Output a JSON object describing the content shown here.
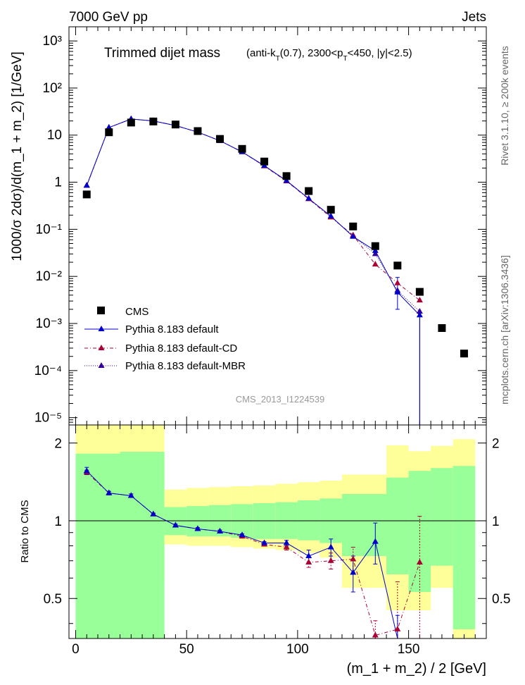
{
  "header": {
    "left": "7000 GeV pp",
    "right": "Jets"
  },
  "side_labels": {
    "rivet": "Rivet 3.1.10, ≥ 200k events",
    "mcplots": "mcplots.cern.ch [arXiv:1306.3436]"
  },
  "colors": {
    "data": "#000000",
    "default": "#0000cc",
    "default_cd": "#aa0033",
    "default_mbr": "#330099",
    "band_green": "#99ff99",
    "band_yellow": "#ffff99"
  },
  "chart_data": [
    {
      "type": "line",
      "title": "Trimmed dijet mass",
      "title_detail": "(anti-k_T(0.7), 2300<p_T<450, |y|<2.5)",
      "watermark": "CMS_2013_I1224539",
      "ylabel": "1000/σ 2dσ)/d(m_1 + m_2) [1/GeV]",
      "yscale": "log",
      "ylim": [
        7e-06,
        2000
      ],
      "xlim": [
        -3,
        185
      ],
      "ytick_labels": [
        "10⁻⁵",
        "10⁻⁴",
        "10⁻³",
        "10⁻²",
        "10⁻¹",
        "1",
        "10",
        "10²",
        "10³"
      ],
      "legend_position": "lower-left",
      "series": [
        {
          "name": "CMS",
          "style": "markers",
          "x": [
            5,
            15,
            25,
            35,
            45,
            55,
            65,
            75,
            85,
            95,
            105,
            115,
            125,
            135,
            145,
            155,
            165,
            175
          ],
          "values": [
            0.55,
            11.5,
            18.5,
            19.5,
            16.8,
            12.2,
            8.3,
            5.1,
            2.75,
            1.35,
            0.65,
            0.26,
            0.115,
            0.044,
            0.017,
            0.0047,
            0.0008,
            0.00023
          ]
        },
        {
          "name": "Pythia 8.183 default",
          "style": "solid",
          "x": [
            5,
            15,
            25,
            35,
            45,
            55,
            65,
            75,
            85,
            95,
            105,
            115,
            125,
            135,
            145,
            155
          ],
          "values": [
            0.85,
            14.5,
            22.0,
            20.0,
            16.0,
            11.6,
            7.6,
            4.4,
            2.25,
            1.08,
            0.45,
            0.19,
            0.07,
            0.035,
            0.0046,
            0.0015
          ]
        },
        {
          "name": "Pythia 8.183 default-CD",
          "style": "dash-dot",
          "x": [
            5,
            15,
            25,
            35,
            45,
            55,
            65,
            75,
            85,
            95,
            105,
            115,
            125,
            135,
            145,
            155
          ],
          "values": [
            0.85,
            14.5,
            22.0,
            20.0,
            16.0,
            11.6,
            7.6,
            4.4,
            2.2,
            1.05,
            0.44,
            0.18,
            0.075,
            0.018,
            0.0072,
            0.0031
          ]
        },
        {
          "name": "Pythia 8.183 default-MBR",
          "style": "dotted",
          "x": [
            5,
            15,
            25,
            35,
            45,
            55,
            65,
            75,
            85,
            95,
            105,
            115,
            125,
            135,
            145,
            155
          ],
          "values": [
            0.85,
            14.5,
            22.0,
            20.0,
            16.0,
            11.6,
            7.6,
            4.4,
            2.2,
            1.06,
            0.45,
            0.185,
            0.072,
            0.03,
            0.005,
            0.0018
          ]
        }
      ]
    },
    {
      "type": "line",
      "ylabel": "Ratio to CMS",
      "xlabel": "(m_1 + m_2) / 2 [GeV]",
      "yscale": "log",
      "ylim": [
        0.35,
        2.35
      ],
      "xlim": [
        -3,
        185
      ],
      "xticks": [
        0,
        50,
        100,
        150
      ],
      "yticks": [
        0.5,
        1,
        2
      ],
      "ytick_labels": [
        "0.5",
        "1",
        "2"
      ],
      "bins": [
        0,
        20,
        40,
        50,
        60,
        70,
        80,
        90,
        100,
        110,
        120,
        140,
        150,
        160,
        170,
        180
      ],
      "band_green": [
        [
          0.3,
          1.82
        ],
        [
          0.3,
          1.85
        ],
        [
          0.88,
          1.13
        ],
        [
          0.87,
          1.14
        ],
        [
          0.87,
          1.15
        ],
        [
          0.86,
          1.16
        ],
        [
          0.85,
          1.17
        ],
        [
          0.85,
          1.18
        ],
        [
          0.84,
          1.2
        ],
        [
          0.82,
          1.22
        ],
        [
          0.73,
          1.27
        ],
        [
          0.62,
          1.47
        ],
        [
          0.53,
          1.56
        ],
        [
          0.67,
          1.6
        ],
        [
          0.38,
          1.63
        ]
      ],
      "band_yellow": [
        [
          0.3,
          2.35
        ],
        [
          0.59,
          2.35
        ],
        [
          0.81,
          1.32
        ],
        [
          0.8,
          1.34
        ],
        [
          0.8,
          1.35
        ],
        [
          0.79,
          1.36
        ],
        [
          0.78,
          1.37
        ],
        [
          0.77,
          1.39
        ],
        [
          0.75,
          1.41
        ],
        [
          0.72,
          1.43
        ],
        [
          0.55,
          1.51
        ],
        [
          0.45,
          1.96
        ],
        [
          0.45,
          1.86
        ],
        [
          0.55,
          1.95
        ],
        [
          0.33,
          2.07
        ]
      ],
      "series": [
        {
          "name": "Pythia 8.183 default",
          "x": [
            5,
            15,
            25,
            35,
            45,
            55,
            65,
            75,
            85,
            95,
            105,
            115,
            125,
            135,
            145
          ],
          "values": [
            1.56,
            1.28,
            1.25,
            1.06,
            0.96,
            0.93,
            0.91,
            0.88,
            0.82,
            0.82,
            0.73,
            0.79,
            0.63,
            0.83,
            0.33
          ],
          "err": [
            0.05,
            0.02,
            0.02,
            0.01,
            0.01,
            0.01,
            0.01,
            0.01,
            0.01,
            0.02,
            0.04,
            0.06,
            0.1,
            0.15,
            0.1
          ]
        },
        {
          "name": "Pythia 8.183 default-CD",
          "x": [
            5,
            15,
            25,
            35,
            45,
            55,
            65,
            75,
            85,
            95,
            105,
            115,
            125,
            135,
            145,
            155
          ],
          "values": [
            1.54,
            1.28,
            1.25,
            1.06,
            0.96,
            0.93,
            0.91,
            0.87,
            0.81,
            0.79,
            0.69,
            0.7,
            0.71,
            0.36,
            0.38,
            0.69
          ],
          "err": [
            0.03,
            0.02,
            0.02,
            0.01,
            0.01,
            0.01,
            0.01,
            0.01,
            0.01,
            0.02,
            0.03,
            0.05,
            0.08,
            0.05,
            0.2,
            0.35
          ]
        }
      ]
    }
  ]
}
